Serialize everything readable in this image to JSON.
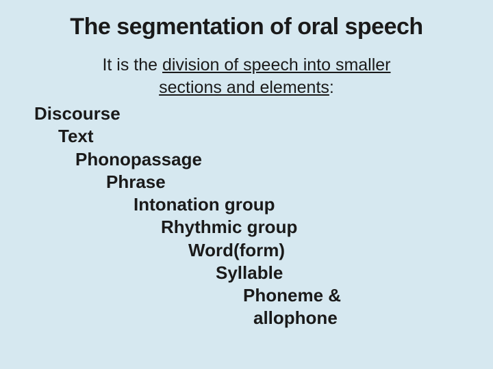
{
  "title": "The segmentation of oral speech",
  "intro_prefix": "It is the ",
  "intro_underlined_1": "division of speech into smaller",
  "intro_underlined_2": "sections and elements",
  "intro_suffix": ":",
  "hierarchy": {
    "items": [
      {
        "label": "Discourse",
        "indent": 20
      },
      {
        "label": "Text",
        "indent": 55
      },
      {
        "label": "Phonopassage",
        "indent": 80
      },
      {
        "label": "Phrase",
        "indent": 125
      },
      {
        "label": "Intonation group",
        "indent": 165
      },
      {
        "label": "Rhythmic group",
        "indent": 205
      },
      {
        "label": "Word(form)",
        "indent": 245
      },
      {
        "label": "Syllable",
        "indent": 285
      },
      {
        "label": "Phoneme &",
        "indent": 325
      },
      {
        "label": "allophone",
        "indent": 340
      }
    ]
  },
  "styling": {
    "background_color": "#d6e8f0",
    "text_color": "#1a1a1a",
    "title_fontsize": 34,
    "body_fontsize": 26,
    "font_family": "Verdana"
  }
}
